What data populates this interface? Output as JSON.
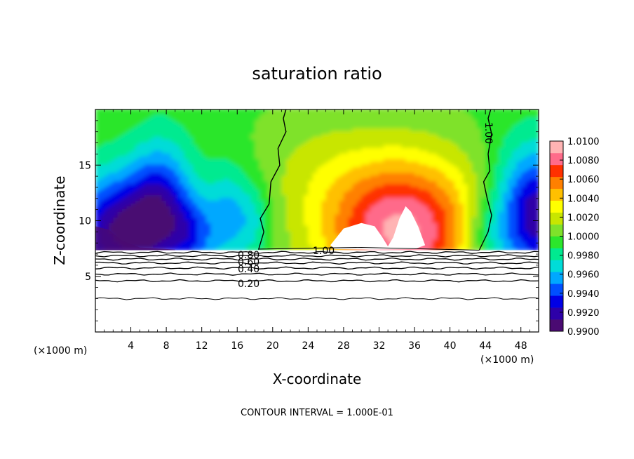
{
  "chart_data": {
    "type": "heatmap",
    "title": "saturation ratio",
    "xlabel": "X-coordinate",
    "ylabel": "Z-coordinate",
    "x_unit_label": "(×1000 m)",
    "x_unit_label_right": "(×1000 m)",
    "xlim": [
      0,
      50
    ],
    "ylim": [
      0,
      20
    ],
    "x_ticks": [
      4,
      8,
      12,
      16,
      20,
      24,
      28,
      32,
      36,
      40,
      44,
      48
    ],
    "y_ticks": [
      5,
      10,
      15
    ],
    "colorbar": {
      "min": 0.99,
      "max": 1.01,
      "labels": [
        "1.0100",
        "1.0080",
        "1.0060",
        "1.0040",
        "1.0020",
        "1.0000",
        "0.9980",
        "0.9960",
        "0.9940",
        "0.9920",
        "0.9900"
      ],
      "colors": [
        "#4a0a72",
        "#2d00a8",
        "#0000e6",
        "#0050ff",
        "#00a8ff",
        "#00dcd8",
        "#00ea90",
        "#2ce62c",
        "#7fe22a",
        "#c8e600",
        "#ffff00",
        "#ffc000",
        "#ff8000",
        "#ff3000",
        "#ff6b8a",
        "#ffb4b4"
      ]
    },
    "contour_labels": [
      "1.00",
      "1.00",
      "0.80",
      "0.60",
      "0.40",
      "0.20"
    ],
    "contour_lines_z": [
      3.0,
      4.6,
      5.2,
      5.75,
      6.2,
      6.55,
      6.85,
      7.15
    ],
    "contour_interval_note": "CONTOUR INTERVAL = 1.000E-01"
  }
}
